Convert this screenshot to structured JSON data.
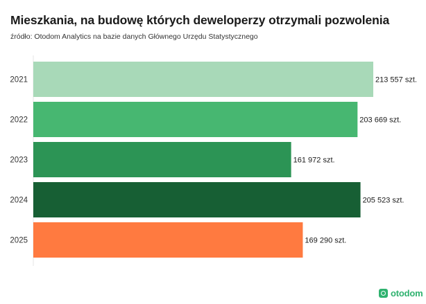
{
  "header": {
    "title": "Mieszkania, na budowę których deweloperzy otrzymali pozwolenia",
    "subtitle": "źródło: Otodom Analytics na bazie danych Głównego Urzędu Statystycznego"
  },
  "brand": {
    "logo_text": "otodom",
    "color": "#2fb26f"
  },
  "chart_data": {
    "type": "bar",
    "orientation": "horizontal",
    "categories": [
      "2021",
      "2022",
      "2023",
      "2024",
      "2025"
    ],
    "values": [
      213557,
      203669,
      161972,
      205523,
      169290
    ],
    "data_labels": [
      "213 557 szt.",
      "203 669 szt.",
      "161 972 szt.",
      "205 523 szt.",
      "169 290 szt."
    ],
    "colors": [
      "#a8d9b8",
      "#47b771",
      "#2c9455",
      "#175f34",
      "#ff7a40"
    ],
    "xlim": [
      0,
      213557
    ],
    "grid": false,
    "legend": "none"
  }
}
